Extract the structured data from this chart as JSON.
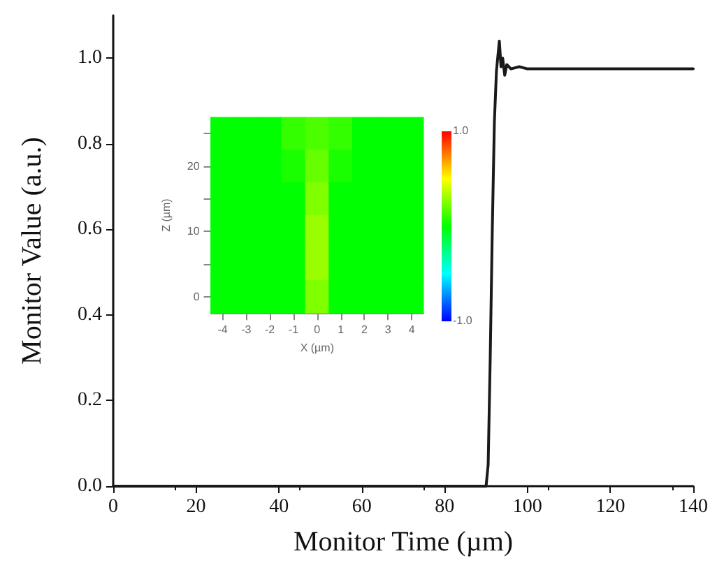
{
  "chart_data": [
    {
      "type": "line",
      "xlabel": "Monitor Time (µm)",
      "ylabel": "Monitor Value (a.u.)",
      "xlim": [
        0,
        140
      ],
      "ylim": [
        0,
        1.1
      ],
      "xticks": [
        0,
        20,
        40,
        60,
        80,
        100,
        120,
        140
      ],
      "yticks": [
        {
          "value": 0,
          "label": "0.0"
        },
        {
          "value": 0.2,
          "label": "0.2"
        },
        {
          "value": 0.4,
          "label": "0.4"
        },
        {
          "value": 0.6,
          "label": "0.6"
        },
        {
          "value": 0.8,
          "label": "0.8"
        },
        {
          "value": 1,
          "label": "1.0"
        }
      ],
      "grid": false,
      "marker": "none",
      "line_style": "solid",
      "series": [
        {
          "color": "#1a1a1a",
          "x": [
            0,
            90,
            90.5,
            91,
            91.5,
            92,
            92.5,
            92.8,
            93.2,
            93.6,
            94,
            94.5,
            95,
            96,
            98,
            100,
            140
          ],
          "values": [
            0,
            0,
            0.05,
            0.3,
            0.6,
            0.85,
            0.97,
            1.0,
            1.04,
            0.98,
            1.0,
            0.96,
            0.985,
            0.975,
            0.98,
            0.975,
            0.975
          ]
        }
      ]
    },
    {
      "type": "heatmap",
      "xlabel": "X (µm)",
      "ylabel": "Z (µm)",
      "categories": [
        "-4",
        "-3",
        "-2",
        "-1",
        "0",
        "1",
        "2",
        "3",
        "4"
      ],
      "y_categories": [
        null,
        "20",
        null,
        "10",
        null,
        "0"
      ],
      "clim": [
        -1,
        1
      ],
      "cticks": [
        {
          "value": -1,
          "label": "-1.0"
        },
        {
          "value": 1,
          "label": "1.0"
        }
      ],
      "cells": [
        [
          0,
          0,
          0,
          0.1,
          0.15,
          0.1,
          0,
          0,
          0
        ],
        [
          0,
          0,
          0,
          0.05,
          0.2,
          0.05,
          0,
          0,
          0
        ],
        [
          0,
          0,
          0,
          0,
          0.25,
          0,
          0,
          0,
          0
        ],
        [
          0,
          0,
          0,
          0,
          0.3,
          0,
          0,
          0,
          0
        ],
        [
          0,
          0,
          0,
          0,
          0.3,
          0,
          0,
          0,
          0
        ],
        [
          0,
          0,
          0,
          0,
          0.25,
          0,
          0,
          0,
          0
        ]
      ]
    }
  ]
}
